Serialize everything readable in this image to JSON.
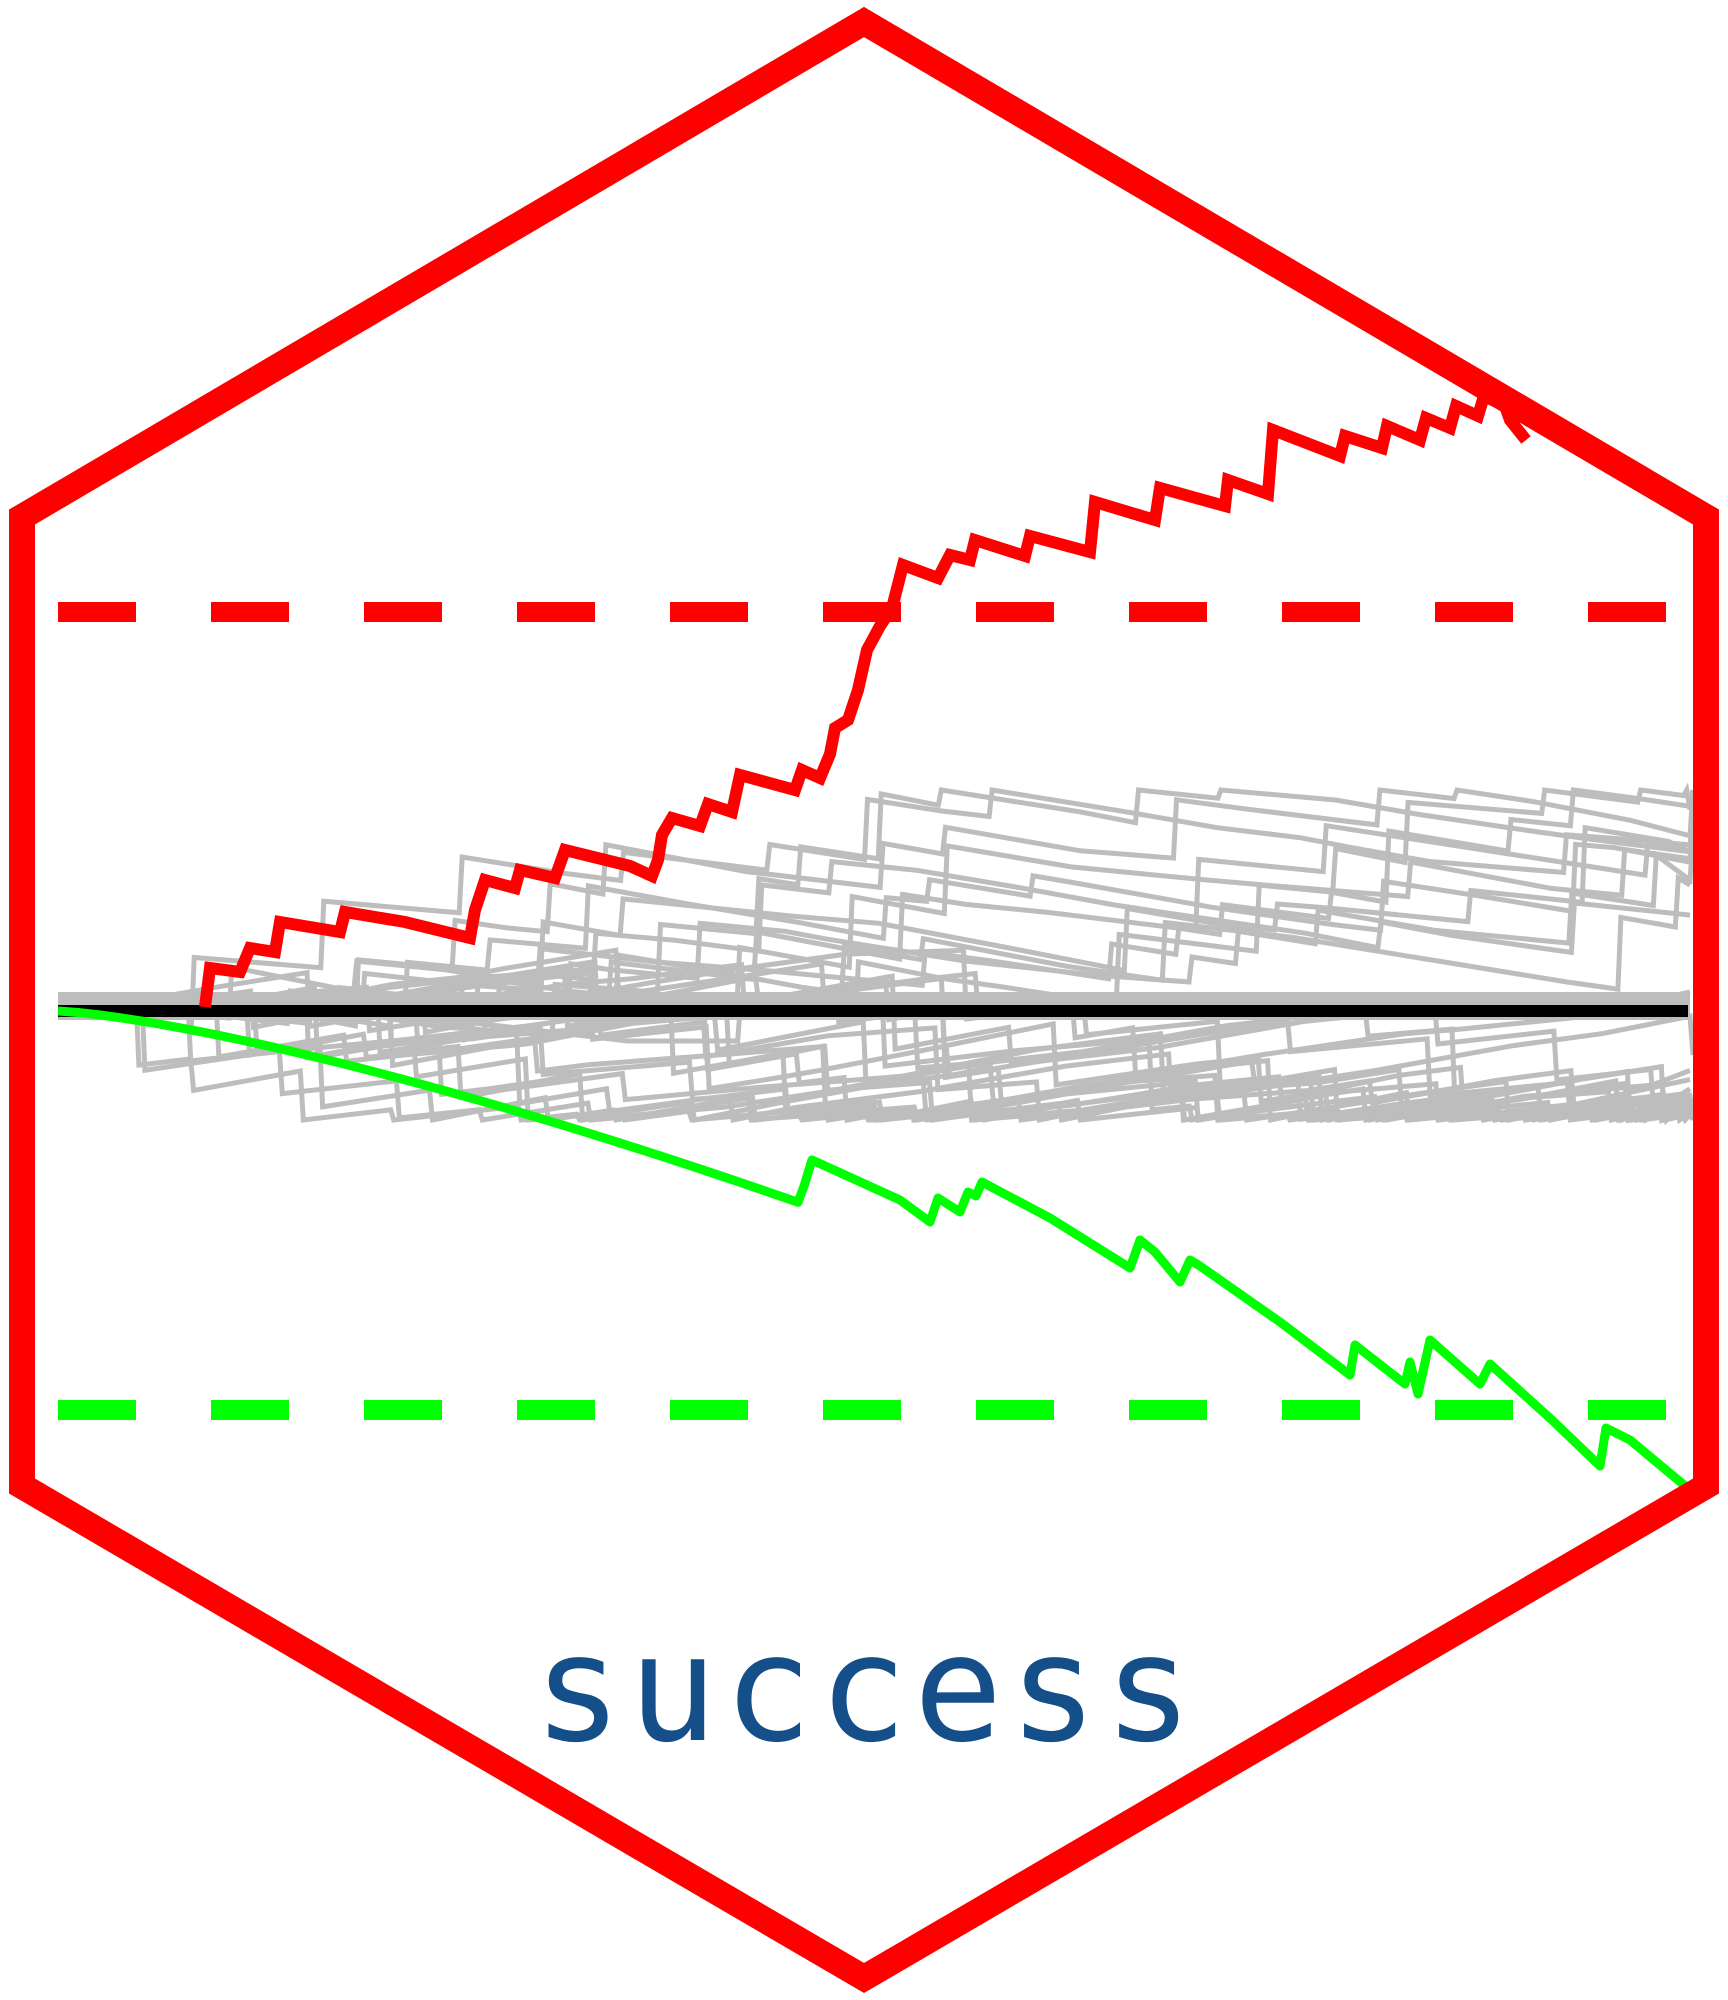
{
  "logo": {
    "package_name": "success",
    "colors": {
      "border": "#ff0000",
      "background": "#ffffff",
      "upper_path": "#ff0000",
      "lower_path": "#00ff00",
      "control_paths": "#bdbdbd",
      "baseline": "#000000",
      "upper_limit": "#ff0000",
      "lower_limit": "#00ff00",
      "text": "#154f8a"
    },
    "shape": "hexagon"
  }
}
